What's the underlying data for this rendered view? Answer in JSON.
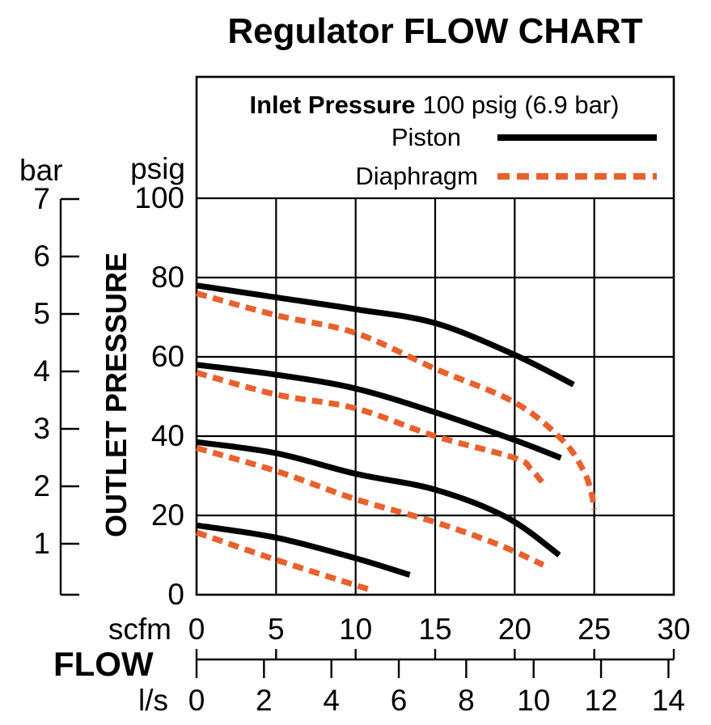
{
  "chart_data": {
    "type": "line",
    "title": "Regulator FLOW CHART",
    "grid": true,
    "legend": {
      "position": "top-inside",
      "heading_bold": "Inlet Pressure",
      "heading_value": "100 psig (6.9 bar)",
      "entries": [
        {
          "name": "Piston",
          "style": "solid",
          "color": "#000000"
        },
        {
          "name": "Diaphragm",
          "style": "dashed",
          "color": "#E8612C"
        }
      ]
    },
    "x_axis": {
      "label": "FLOW",
      "primary": {
        "unit": "scfm",
        "ticks": [
          0,
          5,
          10,
          15,
          20,
          25,
          30
        ],
        "range": [
          0,
          30
        ]
      },
      "secondary": {
        "unit": "l/s",
        "ticks": [
          0,
          2,
          4,
          6,
          8,
          10,
          12,
          14
        ],
        "range": [
          0,
          14.16
        ],
        "scfm_per_unit": 2.1189
      }
    },
    "y_axis": {
      "label": "OUTLET PRESSURE",
      "primary": {
        "unit": "psig",
        "ticks": [
          100,
          80,
          60,
          40,
          20,
          0
        ],
        "range": [
          0,
          100
        ]
      },
      "secondary": {
        "unit": "bar",
        "ticks": [
          7,
          6,
          5,
          4,
          3,
          2,
          1
        ],
        "range": [
          0,
          7
        ]
      }
    },
    "series": [
      {
        "name": "Piston",
        "style": "solid",
        "color": "#000000",
        "units": {
          "x": "scfm",
          "y": "psig"
        },
        "curves": [
          [
            [
              0,
              78
            ],
            [
              5,
              75
            ],
            [
              10,
              72
            ],
            [
              15,
              68.5
            ],
            [
              20,
              60.5
            ],
            [
              23.7,
              53
            ]
          ],
          [
            [
              0,
              58
            ],
            [
              5,
              55.5
            ],
            [
              10,
              52
            ],
            [
              15,
              46
            ],
            [
              20,
              39
            ],
            [
              22.9,
              34.5
            ]
          ],
          [
            [
              0,
              38.5
            ],
            [
              5,
              35.7
            ],
            [
              10,
              30.5
            ],
            [
              15,
              26.5
            ],
            [
              19.5,
              19.5
            ],
            [
              22.8,
              10
            ]
          ],
          [
            [
              0,
              17.5
            ],
            [
              5,
              14.4
            ],
            [
              10,
              9.2
            ],
            [
              13.4,
              5
            ]
          ]
        ]
      },
      {
        "name": "Diaphragm",
        "style": "dashed",
        "color": "#E8612C",
        "units": {
          "x": "scfm",
          "y": "psig"
        },
        "curves": [
          [
            [
              0,
              76
            ],
            [
              5,
              70.5
            ],
            [
              10,
              66
            ],
            [
              15,
              57
            ],
            [
              20,
              48.5
            ],
            [
              23,
              39
            ],
            [
              24.3,
              31.5
            ],
            [
              24.8,
              26
            ],
            [
              25,
              21.5
            ]
          ],
          [
            [
              0,
              56
            ],
            [
              5,
              50.5
            ],
            [
              10,
              47
            ],
            [
              15,
              40
            ],
            [
              20,
              34.5
            ],
            [
              21,
              31.8
            ],
            [
              21.8,
              28
            ]
          ],
          [
            [
              0,
              37
            ],
            [
              5,
              31.2
            ],
            [
              10,
              24.1
            ],
            [
              15,
              18.3
            ],
            [
              19,
              12.6
            ],
            [
              21.8,
              7.5
            ]
          ],
          [
            [
              0,
              15.7
            ],
            [
              5,
              8.8
            ],
            [
              10,
              2.4
            ],
            [
              10.8,
              1.4
            ]
          ]
        ]
      }
    ]
  }
}
